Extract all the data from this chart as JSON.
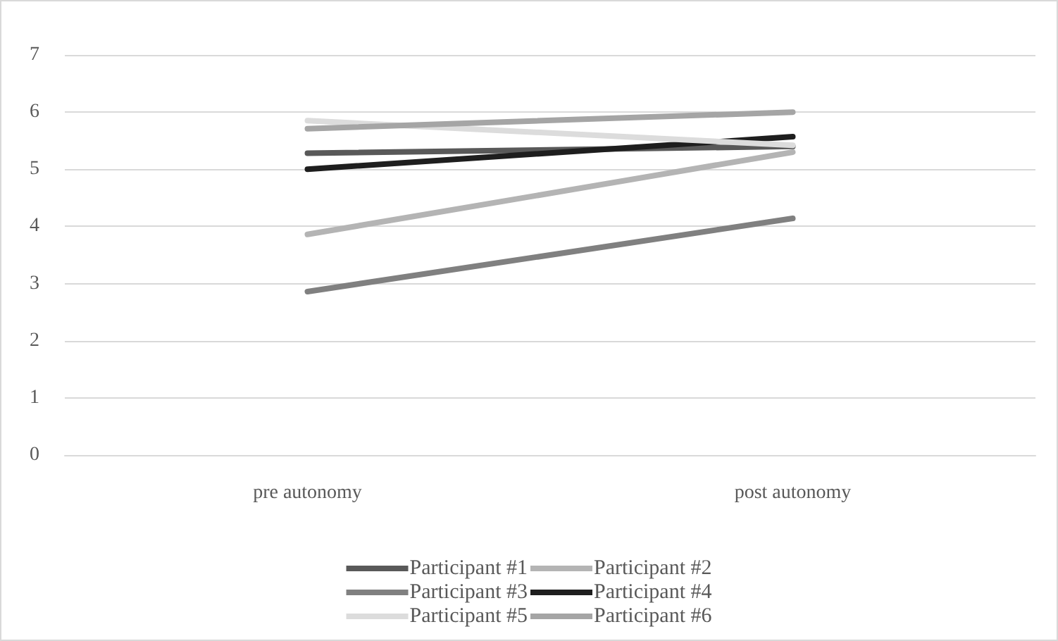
{
  "chart_data": {
    "type": "line",
    "categories": [
      "pre autonomy",
      "post autonomy"
    ],
    "series": [
      {
        "name": "Participant #1",
        "color": "#595959",
        "values": [
          5.28,
          5.4
        ]
      },
      {
        "name": "Participant #2",
        "color": "#b4b4b4",
        "values": [
          3.86,
          5.3
        ]
      },
      {
        "name": "Participant #3",
        "color": "#808080",
        "values": [
          2.86,
          4.14
        ]
      },
      {
        "name": "Participant #4",
        "color": "#1e1e1e",
        "values": [
          5.0,
          5.57
        ]
      },
      {
        "name": "Participant #5",
        "color": "#dcdcdc",
        "values": [
          5.85,
          5.42
        ]
      },
      {
        "name": "Participant #6",
        "color": "#a5a5a5",
        "values": [
          5.71,
          6.0
        ]
      }
    ],
    "ylim": [
      0,
      7
    ],
    "yticks": [
      0,
      1,
      2,
      3,
      4,
      5,
      6,
      7
    ],
    "grid": "y",
    "legend": "bottom",
    "marker": "none",
    "line_style": "solid"
  }
}
